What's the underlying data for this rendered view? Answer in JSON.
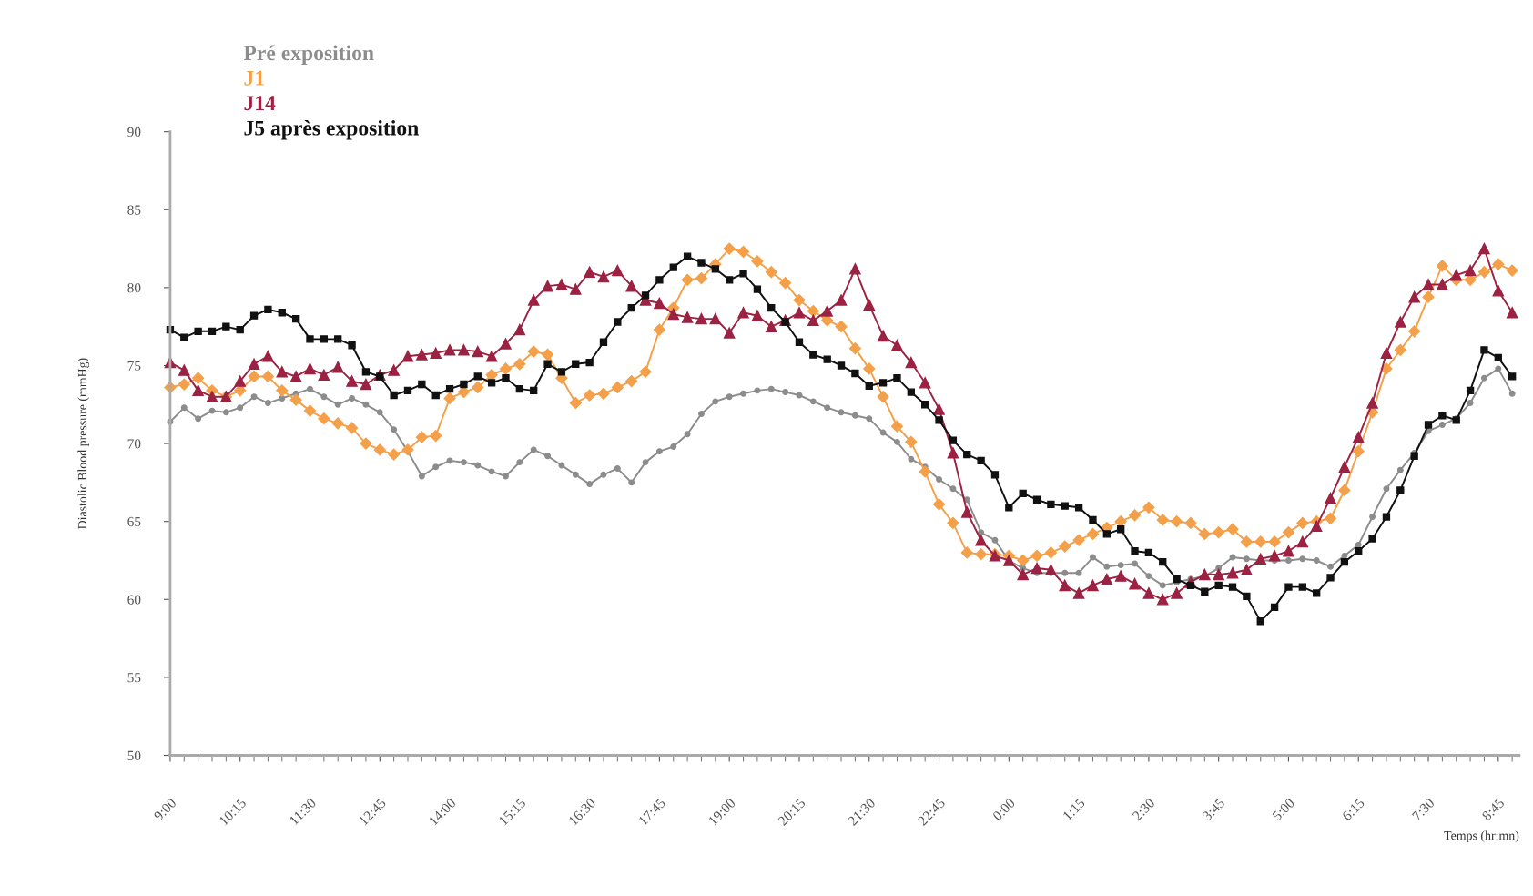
{
  "chart_data": {
    "type": "line",
    "xlabel": "Temps (hr:mn)",
    "ylabel": "Diastolic Blood pressure (mmHg)",
    "categories": [
      "9:00",
      null,
      null,
      null,
      null,
      "10:15",
      null,
      null,
      null,
      null,
      "11:30",
      null,
      null,
      null,
      null,
      "12:45",
      null,
      null,
      null,
      null,
      "14:00",
      null,
      null,
      null,
      null,
      "15:15",
      null,
      null,
      null,
      null,
      "16:30",
      null,
      null,
      null,
      null,
      "17:45",
      null,
      null,
      null,
      null,
      "19:00",
      null,
      null,
      null,
      null,
      "20:15",
      null,
      null,
      null,
      null,
      "21:30",
      null,
      null,
      null,
      null,
      "22:45",
      null,
      null,
      null,
      null,
      "0:00",
      null,
      null,
      null,
      null,
      "1:15",
      null,
      null,
      null,
      null,
      "2:30",
      null,
      null,
      null,
      null,
      "3:45",
      null,
      null,
      null,
      null,
      "5:00",
      null,
      null,
      null,
      null,
      "6:15",
      null,
      null,
      null,
      null,
      "7:30",
      null,
      null,
      null,
      null,
      "8:45",
      null
    ],
    "ylim": [
      50,
      90
    ],
    "yticks": [
      50,
      55,
      60,
      65,
      70,
      75,
      80,
      85,
      90
    ],
    "grid": false,
    "legend": "top left",
    "line_style": "solid",
    "series": [
      {
        "name": "Pré exposition",
        "color": "#8c8c8c",
        "marker": "circle",
        "values": [
          71.4,
          72.3,
          71.6,
          72.1,
          72.0,
          72.3,
          73.0,
          72.6,
          72.9,
          73.2,
          73.5,
          73.0,
          72.5,
          72.9,
          72.5,
          72.0,
          70.9,
          69.5,
          67.9,
          68.5,
          68.9,
          68.8,
          68.6,
          68.2,
          67.9,
          68.8,
          69.6,
          69.2,
          68.6,
          68.0,
          67.4,
          68.0,
          68.4,
          67.5,
          68.8,
          69.5,
          69.8,
          70.6,
          71.9,
          72.7,
          73.0,
          73.2,
          73.4,
          73.5,
          73.3,
          73.1,
          72.7,
          72.3,
          72.0,
          71.8,
          71.6,
          70.7,
          70.1,
          69.0,
          68.5,
          67.7,
          67.1,
          66.4,
          64.3,
          63.8,
          62.5,
          62.0,
          61.7,
          61.7,
          61.7,
          61.7,
          62.7,
          62.1,
          62.2,
          62.3,
          61.5,
          60.9,
          61.1,
          61.3,
          61.5,
          62.0,
          62.7,
          62.6,
          62.5,
          62.5,
          62.5,
          62.6,
          62.5,
          62.1,
          62.8,
          63.5,
          65.3,
          67.1,
          68.3,
          69.4,
          70.8,
          71.2,
          71.6,
          72.6,
          74.2,
          74.8,
          73.2
        ]
      },
      {
        "name": "J1",
        "color": "#f4a04a",
        "marker": "diamond",
        "values": [
          73.6,
          73.8,
          74.2,
          73.4,
          73.0,
          73.4,
          74.3,
          74.3,
          73.4,
          72.8,
          72.1,
          71.6,
          71.3,
          71.0,
          70.0,
          69.6,
          69.3,
          69.6,
          70.4,
          70.5,
          72.9,
          73.3,
          73.6,
          74.4,
          74.8,
          75.1,
          75.9,
          75.7,
          74.2,
          72.6,
          73.1,
          73.2,
          73.6,
          74.0,
          74.6,
          77.3,
          78.7,
          80.5,
          80.6,
          81.5,
          82.5,
          82.3,
          81.7,
          81.0,
          80.3,
          79.2,
          78.5,
          77.9,
          77.5,
          76.1,
          74.8,
          73.0,
          71.1,
          70.1,
          68.2,
          66.1,
          64.9,
          63.0,
          62.9,
          62.9,
          62.8,
          62.5,
          62.8,
          63.0,
          63.4,
          63.8,
          64.2,
          64.6,
          65.0,
          65.4,
          65.9,
          65.1,
          65.0,
          64.9,
          64.2,
          64.3,
          64.5,
          63.7,
          63.7,
          63.7,
          64.3,
          64.9,
          65.0,
          65.2,
          67.0,
          69.5,
          72.0,
          74.8,
          76.0,
          77.2,
          79.4,
          81.4,
          80.5,
          80.5,
          81.0,
          81.5,
          81.1
        ]
      },
      {
        "name": "J14",
        "color": "#9b2242",
        "marker": "triangle",
        "values": [
          75.2,
          74.7,
          73.4,
          73.0,
          73.0,
          74.0,
          75.1,
          75.6,
          74.6,
          74.3,
          74.8,
          74.4,
          74.9,
          74.0,
          73.8,
          74.4,
          74.7,
          75.6,
          75.7,
          75.8,
          76.0,
          76.0,
          75.9,
          75.6,
          76.4,
          77.3,
          79.2,
          80.1,
          80.2,
          79.9,
          81.0,
          80.7,
          81.1,
          80.1,
          79.2,
          79.0,
          78.3,
          78.1,
          78.0,
          78.0,
          77.1,
          78.4,
          78.2,
          77.5,
          77.9,
          78.4,
          77.9,
          78.5,
          79.2,
          81.2,
          78.9,
          76.9,
          76.3,
          75.2,
          73.9,
          72.2,
          69.4,
          65.6,
          63.8,
          62.8,
          62.5,
          61.6,
          62.0,
          61.9,
          60.9,
          60.4,
          60.9,
          61.3,
          61.5,
          61.0,
          60.4,
          60.0,
          60.4,
          61.1,
          61.6,
          61.6,
          61.7,
          61.9,
          62.6,
          62.8,
          63.1,
          63.7,
          64.7,
          66.5,
          68.5,
          70.4,
          72.6,
          75.8,
          77.8,
          79.4,
          80.2,
          80.2,
          80.8,
          81.1,
          82.5,
          79.8,
          78.4
        ]
      },
      {
        "name": "J5 après exposition",
        "color": "#111111",
        "marker": "square",
        "values": [
          77.3,
          76.8,
          77.2,
          77.2,
          77.5,
          77.3,
          78.2,
          78.6,
          78.4,
          78.0,
          76.7,
          76.7,
          76.7,
          76.3,
          74.6,
          74.3,
          73.1,
          73.4,
          73.8,
          73.1,
          73.5,
          73.8,
          74.3,
          73.9,
          74.2,
          73.5,
          73.4,
          75.1,
          74.6,
          75.1,
          75.2,
          76.5,
          77.8,
          78.7,
          79.5,
          80.5,
          81.3,
          82.0,
          81.6,
          81.2,
          80.5,
          80.9,
          79.9,
          78.7,
          77.8,
          76.5,
          75.7,
          75.4,
          75.0,
          74.5,
          73.7,
          73.9,
          74.2,
          73.3,
          72.5,
          71.5,
          70.2,
          69.3,
          68.9,
          68.0,
          65.9,
          66.8,
          66.4,
          66.1,
          66.0,
          65.9,
          65.1,
          64.2,
          64.5,
          63.1,
          63.0,
          62.4,
          61.3,
          60.9,
          60.5,
          60.9,
          60.8,
          60.2,
          58.6,
          59.5,
          60.8,
          60.8,
          60.4,
          61.4,
          62.4,
          63.1,
          63.9,
          65.3,
          67.0,
          69.2,
          71.2,
          71.8,
          71.5,
          73.4,
          76.0,
          75.5,
          74.3
        ]
      }
    ]
  }
}
